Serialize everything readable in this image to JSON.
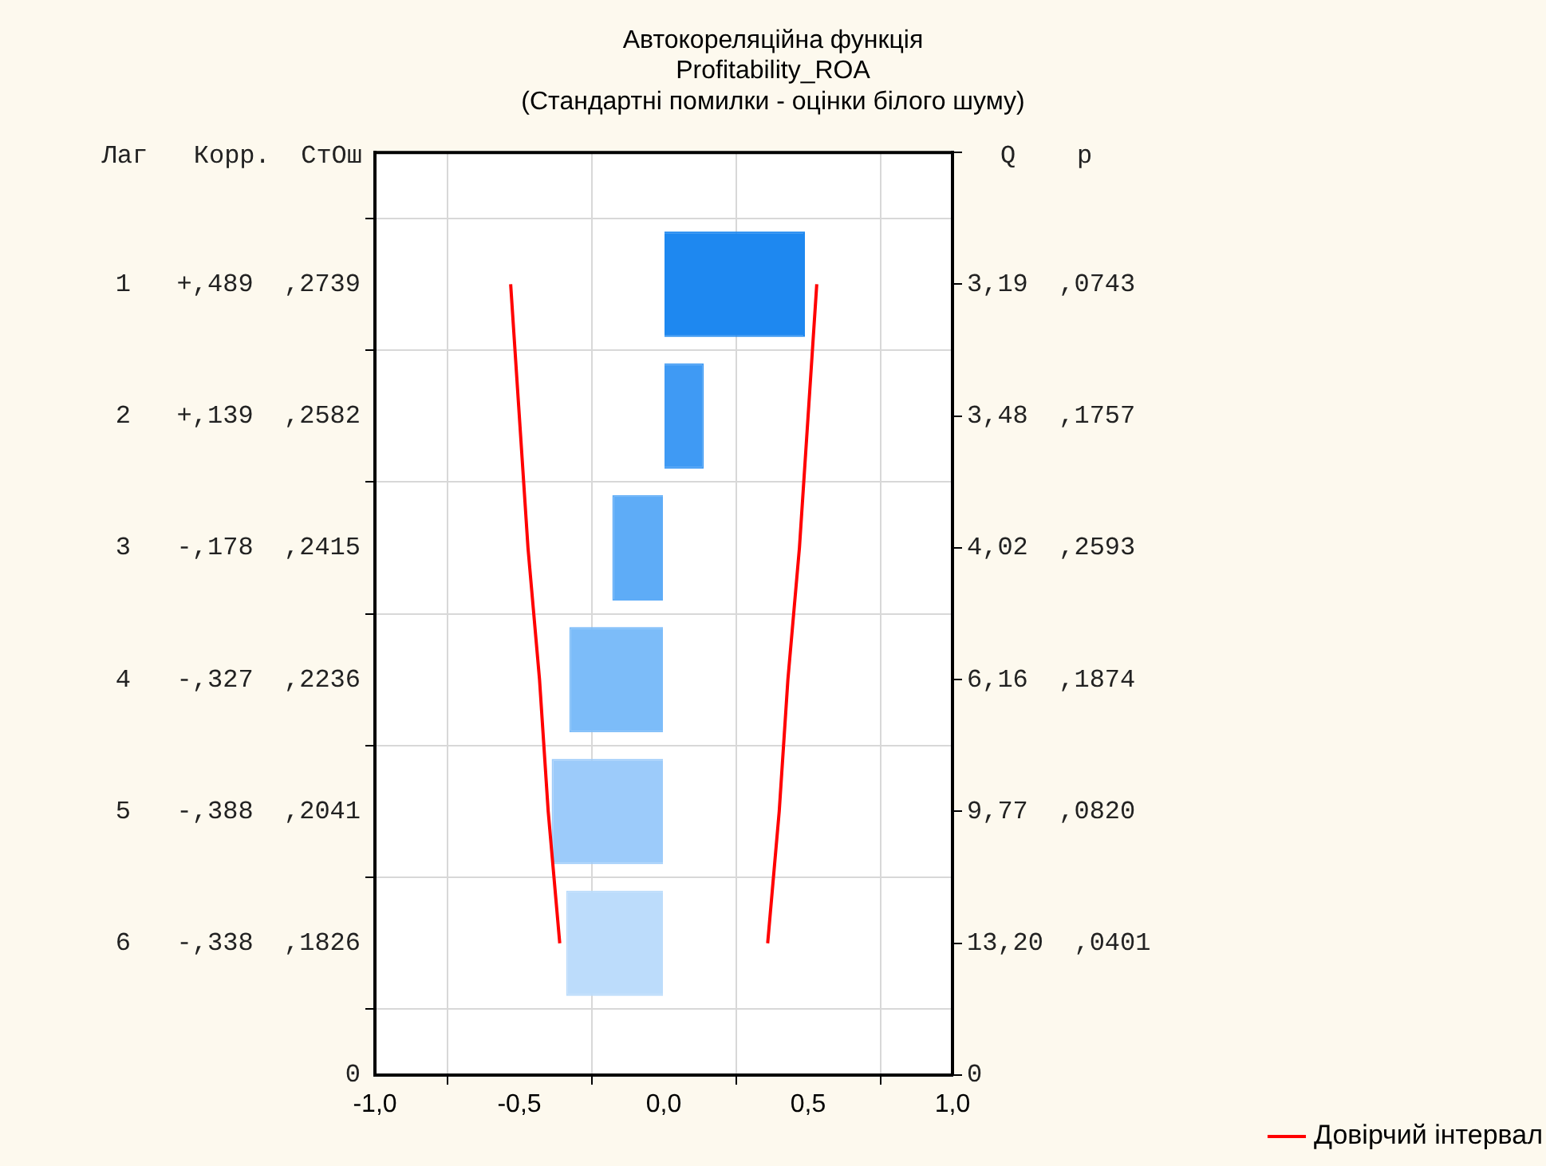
{
  "chart_data": {
    "type": "bar",
    "orientation": "horizontal",
    "title": "Автокореляційна функція",
    "subtitle": "Profitability_ROA",
    "annotations": [
      "(Стандартні помилки - оцінки білого шуму)"
    ],
    "ylabel": "Лаг   Корр.  СтОш",
    "y2label": "Q    p",
    "categories": [
      null,
      "1   +,489  ,2739",
      "2   +,139  ,2582",
      "3   -,178  ,2415",
      "4   -,327  ,2236",
      "5   -,388  ,2041",
      "6   -,338  ,1826",
      "0"
    ],
    "y2_categories": [
      null,
      "3,19  ,0743",
      "3,48  ,1757",
      "4,02  ,2593",
      "6,16  ,1874",
      "9,77  ,0820",
      "13,20  ,0401",
      "0"
    ],
    "xlim": [
      -1,
      1
    ],
    "xticks": [
      {
        "value": -1,
        "label": "-1,0"
      },
      {
        "value": -0.5,
        "label": "-0,5"
      },
      {
        "value": 0,
        "label": "0,0"
      },
      {
        "value": 0.5,
        "label": "0,5"
      },
      {
        "value": 1,
        "label": "1,0"
      }
    ],
    "series": [
      {
        "values": [
          null,
          0.489,
          0.139,
          -0.178,
          -0.327,
          -0.388,
          -0.338,
          null
        ],
        "colors": [
          "#1e88f0",
          "#1e88f0",
          "#3f9af4",
          "#5eacf7",
          "#7cbcf9",
          "#9ccbfa",
          "#bcdcfb",
          "#bcdcfb"
        ]
      },
      {
        "type": "line",
        "name": "Довірчий інтервал",
        "color": "#ff0000",
        "x": [
          "1   +,489  ,2739",
          "2   +,139  ,2582",
          "3   -,178  ,2415",
          "4   -,327  ,2236",
          "5   -,388  ,2041",
          "6   -,338  ,1826"
        ],
        "values": [
          0.53,
          0.5,
          0.47,
          0.43,
          0.4,
          0.36
        ]
      },
      {
        "type": "line",
        "color": "#ff0000",
        "x": [
          "1   +,489  ,2739",
          "2   +,139  ,2582",
          "3   -,178  ,2415",
          "4   -,327  ,2236",
          "5   -,388  ,2041",
          "6   -,338  ,1826"
        ],
        "values": [
          -0.53,
          -0.5,
          -0.47,
          -0.43,
          -0.4,
          -0.36
        ]
      }
    ],
    "grid": true,
    "legend": "bottom right",
    "marker": "none",
    "line_style": "solid"
  }
}
